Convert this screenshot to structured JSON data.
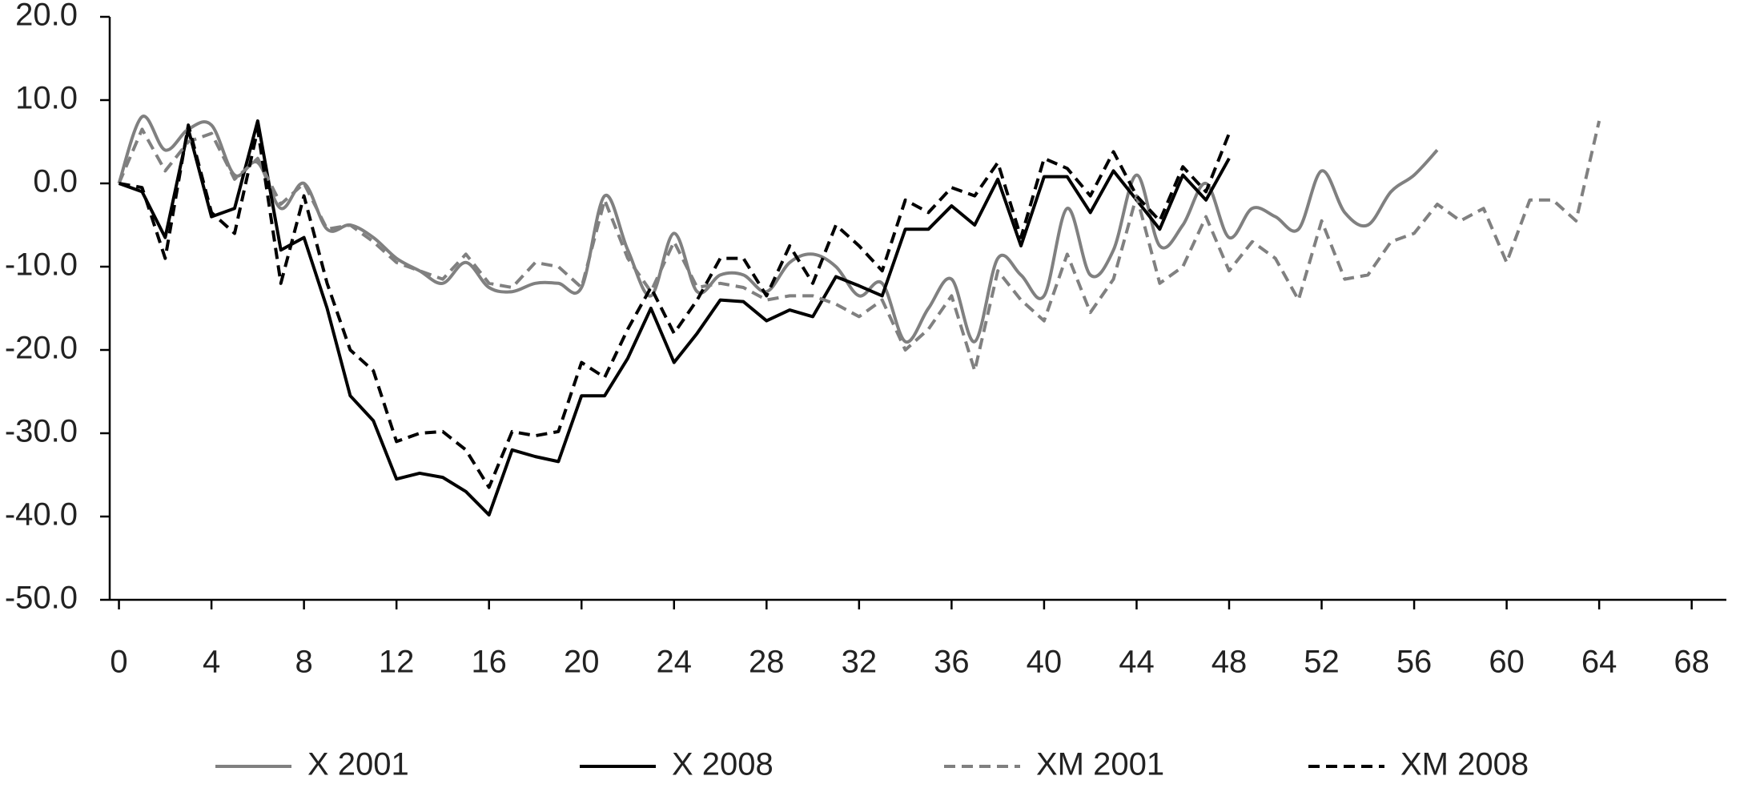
{
  "chart_data": {
    "type": "line",
    "xlim": [
      -0.4,
      69.5
    ],
    "xticks": [
      0,
      4,
      8,
      12,
      16,
      20,
      24,
      28,
      32,
      36,
      40,
      44,
      48,
      52,
      56,
      60,
      64,
      68
    ],
    "ylim": [
      -50,
      20
    ],
    "yticks": [
      {
        "value": -50,
        "label": "-50.0"
      },
      {
        "value": -40,
        "label": "-40.0"
      },
      {
        "value": -30,
        "label": "-30.0"
      },
      {
        "value": -20,
        "label": "-20.0"
      },
      {
        "value": -10,
        "label": "-10.0"
      },
      {
        "value": 0,
        "label": "0.0"
      },
      {
        "value": 10,
        "label": "10.0"
      },
      {
        "value": 20,
        "label": "20.0"
      }
    ],
    "legend": "bottom",
    "series": [
      {
        "name": "X 2001",
        "color": "#808080",
        "dash": false,
        "smooth": true,
        "x": [
          0,
          1,
          2,
          3,
          4,
          5,
          6,
          7,
          8,
          9,
          10,
          11,
          12,
          13,
          14,
          15,
          16,
          17,
          18,
          19,
          20,
          21,
          22,
          23,
          24,
          25,
          26,
          27,
          28,
          29,
          30,
          31,
          32,
          33,
          34,
          35,
          36,
          37,
          38,
          39,
          40,
          41,
          42,
          43,
          44,
          45,
          46,
          47,
          48,
          49,
          50,
          51,
          52,
          53,
          54,
          55,
          56,
          57
        ],
        "values": [
          0,
          8,
          4,
          6.5,
          7,
          1,
          2.5,
          -3,
          0,
          -5.5,
          -5,
          -6.5,
          -9,
          -10.5,
          -12,
          -9.5,
          -12.5,
          -13,
          -12,
          -12,
          -12.5,
          -1.5,
          -8,
          -13.5,
          -6,
          -13,
          -11,
          -11,
          -13,
          -9.5,
          -8.5,
          -10,
          -13.5,
          -12,
          -19,
          -15,
          -11.5,
          -19,
          -9,
          -11,
          -13.5,
          -3,
          -11,
          -8,
          1,
          -7.5,
          -5,
          0,
          -6.5,
          -3,
          -4,
          -5.5,
          1.5,
          -3.5,
          -5,
          -1,
          1,
          4
        ]
      },
      {
        "name": "X 2008",
        "color": "#000000",
        "dash": false,
        "smooth": false,
        "x": [
          0,
          1,
          2,
          3,
          4,
          5,
          6,
          7,
          8,
          9,
          10,
          11,
          12,
          13,
          14,
          15,
          16,
          17,
          18,
          19,
          20,
          21,
          22,
          23,
          24,
          25,
          26,
          27,
          28,
          29,
          30,
          31,
          32,
          33,
          34,
          35,
          36,
          37,
          38,
          39,
          40,
          41,
          42,
          43,
          44,
          45,
          46,
          47,
          48
        ],
        "values": [
          0,
          -1,
          -6.5,
          6.5,
          -4,
          -3,
          7.5,
          -8,
          -6.5,
          -15,
          -25.5,
          -28.5,
          -35.5,
          -34.8,
          -35.3,
          -37,
          -39.8,
          -32,
          -32.8,
          -33.4,
          -25.5,
          -25.5,
          -21,
          -15,
          -21.5,
          -18,
          -14,
          -14.2,
          -16.5,
          -15.2,
          -16,
          -11.2,
          -12.3,
          -13.5,
          -5.5,
          -5.5,
          -2.7,
          -5,
          0.5,
          -7.5,
          0.8,
          0.8,
          -3.5,
          1.5,
          -2,
          -5.5,
          1,
          -2,
          3
        ]
      },
      {
        "name": "XM 2001",
        "color": "#808080",
        "dash": true,
        "smooth": false,
        "x": [
          0,
          1,
          2,
          3,
          4,
          5,
          6,
          7,
          8,
          9,
          10,
          11,
          12,
          13,
          14,
          15,
          16,
          17,
          18,
          19,
          20,
          21,
          22,
          23,
          24,
          25,
          26,
          27,
          28,
          29,
          30,
          31,
          32,
          33,
          34,
          35,
          36,
          37,
          38,
          39,
          40,
          41,
          42,
          43,
          44,
          45,
          46,
          47,
          48,
          49,
          50,
          51,
          52,
          53,
          54,
          55,
          56,
          57,
          58,
          59,
          60,
          61,
          62,
          63,
          64
        ],
        "values": [
          0,
          6.5,
          1.5,
          5,
          6,
          0.5,
          3,
          -2.5,
          0,
          -5.5,
          -5,
          -7,
          -9.5,
          -10.5,
          -11.5,
          -8.5,
          -12,
          -12.5,
          -9.5,
          -10,
          -12.5,
          -2,
          -9,
          -13,
          -7,
          -12.5,
          -12,
          -12.5,
          -14,
          -13.5,
          -13.5,
          -14.5,
          -16,
          -14,
          -20,
          -17.5,
          -13.5,
          -22.5,
          -10.5,
          -14,
          -16.5,
          -8.5,
          -15.5,
          -11.5,
          -1.5,
          -12,
          -10,
          -4,
          -10.5,
          -7,
          -9,
          -14,
          -4.5,
          -11.5,
          -11,
          -7,
          -6,
          -2.5,
          -4.5,
          -3,
          -9.5,
          -2,
          -2,
          -4.5,
          7.5
        ]
      },
      {
        "name": "XM 2008",
        "color": "#000000",
        "dash": true,
        "smooth": false,
        "x": [
          0,
          1,
          2,
          3,
          4,
          5,
          6,
          7,
          8,
          9,
          10,
          11,
          12,
          13,
          14,
          15,
          16,
          17,
          18,
          19,
          20,
          21,
          22,
          23,
          24,
          25,
          26,
          27,
          28,
          29,
          30,
          31,
          32,
          33,
          34,
          35,
          36,
          37,
          38,
          39,
          40,
          41,
          42,
          43,
          44,
          45,
          46,
          47,
          48
        ],
        "values": [
          0,
          -0.5,
          -9,
          7,
          -3.5,
          -6,
          6.5,
          -12,
          -1.5,
          -12,
          -20,
          -22.5,
          -31,
          -30,
          -29.8,
          -32,
          -36.5,
          -29.8,
          -30.3,
          -29.8,
          -21.5,
          -23.3,
          -17.5,
          -12.5,
          -18,
          -14,
          -9,
          -9,
          -13.5,
          -7.5,
          -12,
          -5,
          -7.5,
          -10.5,
          -2,
          -3.5,
          -0.5,
          -1.5,
          2.5,
          -6.5,
          3,
          1.8,
          -1.5,
          3.8,
          -1.5,
          -4.5,
          2,
          -1,
          6
        ]
      }
    ]
  }
}
